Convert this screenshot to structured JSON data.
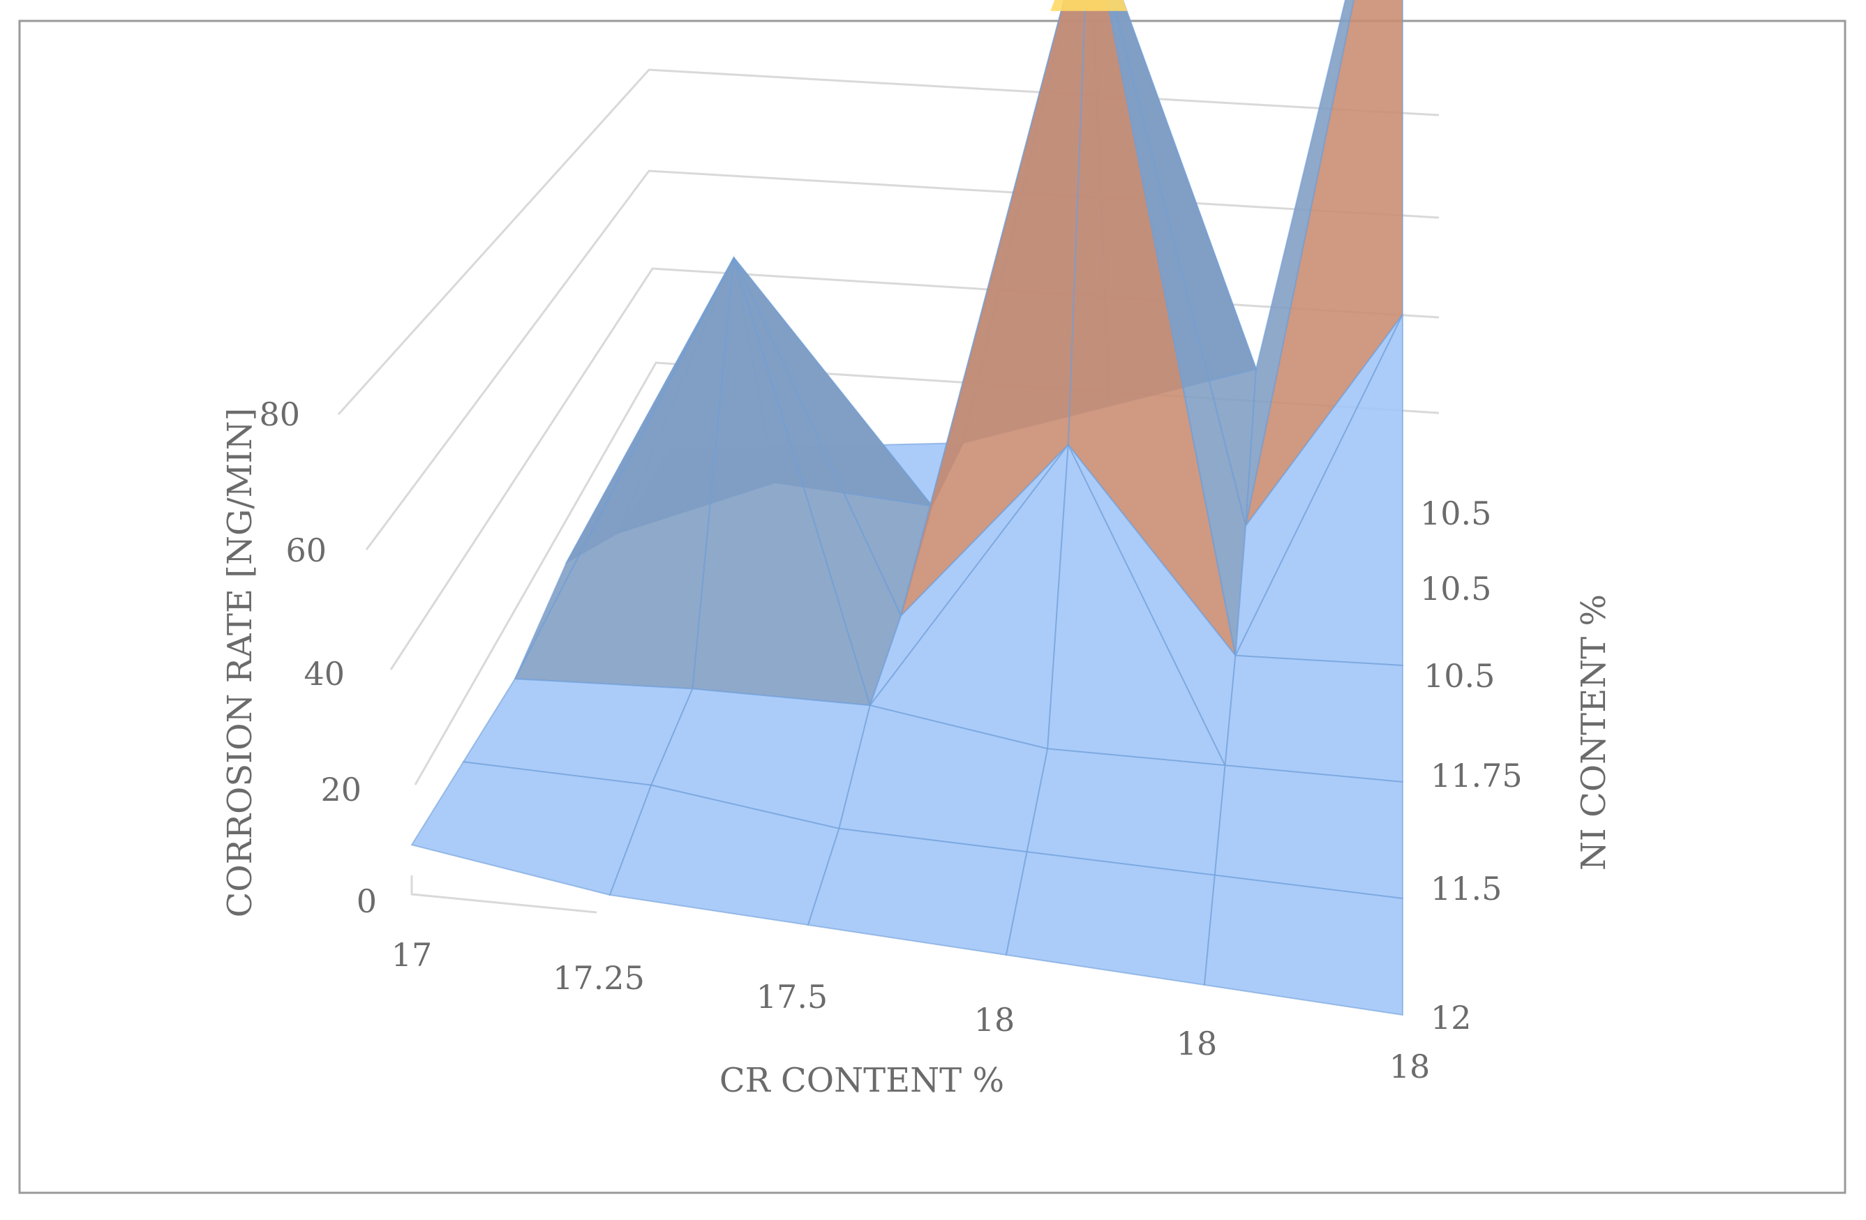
{
  "chart_data": {
    "type": "surface-3d",
    "xlabel": "CR CONTENT %",
    "ylabel": "NI CONTENT %",
    "zlabel": "CORROSION RATE [NG/MIN]",
    "x_categories": [
      "17",
      "17.25",
      "17.5",
      "18",
      "18",
      "18"
    ],
    "y_categories": [
      "12",
      "11.5",
      "11.75",
      "10.5",
      "10.5",
      "10.5"
    ],
    "z_ticks": [
      "0",
      "20",
      "40",
      "60",
      "80"
    ],
    "zlim": [
      0,
      100
    ],
    "bands": [
      {
        "range": [
          0,
          20
        ],
        "color": "#9fc5f8"
      },
      {
        "range": [
          20,
          40
        ],
        "color": "#7f9dc3"
      },
      {
        "range": [
          40,
          60
        ],
        "color": "#c98b6f"
      },
      {
        "range": [
          60,
          80
        ],
        "color": "#9e9e9e"
      },
      {
        "range": [
          80,
          100
        ],
        "color": "#ffd966"
      }
    ],
    "values": [
      [
        3,
        0,
        0,
        0,
        0,
        0
      ],
      [
        3,
        3,
        0,
        0,
        0,
        0
      ],
      [
        3,
        4,
        4,
        0,
        0,
        0
      ],
      [
        8,
        55,
        3,
        30,
        0,
        0
      ],
      [
        0,
        8,
        5,
        95,
        3,
        35
      ],
      [
        0,
        0,
        0,
        5,
        10,
        100
      ]
    ]
  }
}
